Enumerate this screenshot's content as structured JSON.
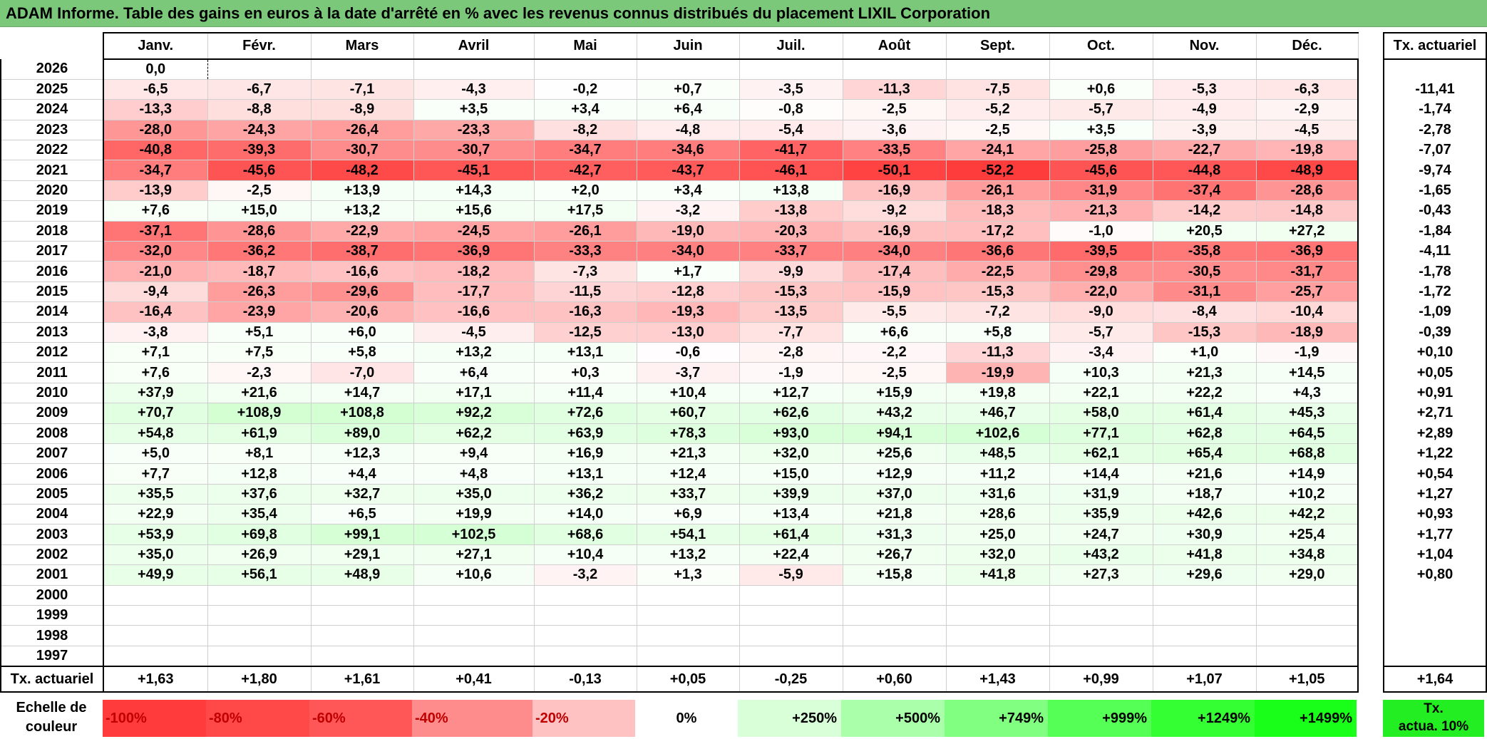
{
  "title": "ADAM Informe. Table des gains en euros à la date d'arrêté en % avec les revenus connus distribués du placement LIXIL Corporation",
  "months": [
    "Janv.",
    "Févr.",
    "Mars",
    "Avril",
    "Mai",
    "Juin",
    "Juil.",
    "Août",
    "Sept.",
    "Oct.",
    "Nov.",
    "Déc."
  ],
  "actuarial_header": "Tx. actuariel",
  "rows": [
    {
      "year": "2026",
      "values": [
        "0,0",
        "",
        "",
        "",
        "",
        "",
        "",
        "",
        "",
        "",
        "",
        ""
      ],
      "actuarial": ""
    },
    {
      "year": "2025",
      "values": [
        "-6,5",
        "-6,7",
        "-7,1",
        "-4,3",
        "-0,2",
        "+0,7",
        "-3,5",
        "-11,3",
        "-7,5",
        "+0,6",
        "-5,3",
        "-6,3"
      ],
      "actuarial": "-11,41"
    },
    {
      "year": "2024",
      "values": [
        "-13,3",
        "-8,8",
        "-8,9",
        "+3,5",
        "+3,4",
        "+6,4",
        "-0,8",
        "-2,5",
        "-5,2",
        "-5,7",
        "-4,9",
        "-2,9"
      ],
      "actuarial": "-1,74"
    },
    {
      "year": "2023",
      "values": [
        "-28,0",
        "-24,3",
        "-26,4",
        "-23,3",
        "-8,2",
        "-4,8",
        "-5,4",
        "-3,6",
        "-2,5",
        "+3,5",
        "-3,9",
        "-4,5"
      ],
      "actuarial": "-2,78"
    },
    {
      "year": "2022",
      "values": [
        "-40,8",
        "-39,3",
        "-30,7",
        "-30,7",
        "-34,7",
        "-34,6",
        "-41,7",
        "-33,5",
        "-24,1",
        "-25,8",
        "-22,7",
        "-19,8"
      ],
      "actuarial": "-7,07"
    },
    {
      "year": "2021",
      "values": [
        "-34,7",
        "-45,6",
        "-48,2",
        "-45,1",
        "-42,7",
        "-43,7",
        "-46,1",
        "-50,1",
        "-52,2",
        "-45,6",
        "-44,8",
        "-48,9"
      ],
      "actuarial": "-9,74"
    },
    {
      "year": "2020",
      "values": [
        "-13,9",
        "-2,5",
        "+13,9",
        "+14,3",
        "+2,0",
        "+3,4",
        "+13,8",
        "-16,9",
        "-26,1",
        "-31,9",
        "-37,4",
        "-28,6"
      ],
      "actuarial": "-1,65"
    },
    {
      "year": "2019",
      "values": [
        "+7,6",
        "+15,0",
        "+13,2",
        "+15,6",
        "+17,5",
        "-3,2",
        "-13,8",
        "-9,2",
        "-18,3",
        "-21,3",
        "-14,2",
        "-14,8"
      ],
      "actuarial": "-0,43"
    },
    {
      "year": "2018",
      "values": [
        "-37,1",
        "-28,6",
        "-22,9",
        "-24,5",
        "-26,1",
        "-19,0",
        "-20,3",
        "-16,9",
        "-17,2",
        "-1,0",
        "+20,5",
        "+27,2"
      ],
      "actuarial": "-1,84"
    },
    {
      "year": "2017",
      "values": [
        "-32,0",
        "-36,2",
        "-38,7",
        "-36,9",
        "-33,3",
        "-34,0",
        "-33,7",
        "-34,0",
        "-36,6",
        "-39,5",
        "-35,8",
        "-36,9"
      ],
      "actuarial": "-4,11"
    },
    {
      "year": "2016",
      "values": [
        "-21,0",
        "-18,7",
        "-16,6",
        "-18,2",
        "-7,3",
        "+1,7",
        "-9,9",
        "-17,4",
        "-22,5",
        "-29,8",
        "-30,5",
        "-31,7"
      ],
      "actuarial": "-1,78"
    },
    {
      "year": "2015",
      "values": [
        "-9,4",
        "-26,3",
        "-29,6",
        "-17,7",
        "-11,5",
        "-12,8",
        "-15,3",
        "-15,9",
        "-15,3",
        "-22,0",
        "-31,1",
        "-25,7"
      ],
      "actuarial": "-1,72"
    },
    {
      "year": "2014",
      "values": [
        "-16,4",
        "-23,9",
        "-20,6",
        "-16,6",
        "-16,3",
        "-19,3",
        "-13,5",
        "-5,5",
        "-7,2",
        "-9,0",
        "-8,4",
        "-10,4"
      ],
      "actuarial": "-1,09"
    },
    {
      "year": "2013",
      "values": [
        "-3,8",
        "+5,1",
        "+6,0",
        "-4,5",
        "-12,5",
        "-13,0",
        "-7,7",
        "+6,6",
        "+5,8",
        "-5,7",
        "-15,3",
        "-18,9"
      ],
      "actuarial": "-0,39"
    },
    {
      "year": "2012",
      "values": [
        "+7,1",
        "+7,5",
        "+5,8",
        "+13,2",
        "+13,1",
        "-0,6",
        "-2,8",
        "-2,2",
        "-11,3",
        "-3,4",
        "+1,0",
        "-1,9"
      ],
      "actuarial": "+0,10"
    },
    {
      "year": "2011",
      "values": [
        "+7,6",
        "-2,3",
        "-7,0",
        "+6,4",
        "+0,3",
        "-3,7",
        "-1,9",
        "-2,5",
        "-19,9",
        "+10,3",
        "+21,3",
        "+14,5"
      ],
      "actuarial": "+0,05"
    },
    {
      "year": "2010",
      "values": [
        "+37,9",
        "+21,6",
        "+14,7",
        "+17,1",
        "+11,4",
        "+10,4",
        "+12,7",
        "+15,9",
        "+19,8",
        "+22,1",
        "+22,2",
        "+4,3"
      ],
      "actuarial": "+0,91"
    },
    {
      "year": "2009",
      "values": [
        "+70,7",
        "+108,9",
        "+108,8",
        "+92,2",
        "+72,6",
        "+60,7",
        "+62,6",
        "+43,2",
        "+46,7",
        "+58,0",
        "+61,4",
        "+45,3"
      ],
      "actuarial": "+2,71"
    },
    {
      "year": "2008",
      "values": [
        "+54,8",
        "+61,9",
        "+89,0",
        "+62,2",
        "+63,9",
        "+78,3",
        "+93,0",
        "+94,1",
        "+102,6",
        "+77,1",
        "+62,8",
        "+64,5"
      ],
      "actuarial": "+2,89"
    },
    {
      "year": "2007",
      "values": [
        "+5,0",
        "+8,1",
        "+12,3",
        "+9,4",
        "+16,9",
        "+21,3",
        "+32,0",
        "+25,6",
        "+48,5",
        "+62,1",
        "+65,4",
        "+68,8"
      ],
      "actuarial": "+1,22"
    },
    {
      "year": "2006",
      "values": [
        "+7,7",
        "+12,8",
        "+4,4",
        "+4,8",
        "+13,1",
        "+12,4",
        "+15,0",
        "+12,9",
        "+11,2",
        "+14,4",
        "+21,6",
        "+14,9"
      ],
      "actuarial": "+0,54"
    },
    {
      "year": "2005",
      "values": [
        "+35,5",
        "+37,6",
        "+32,7",
        "+35,0",
        "+36,2",
        "+33,7",
        "+39,9",
        "+37,0",
        "+31,6",
        "+31,9",
        "+18,7",
        "+10,2"
      ],
      "actuarial": "+1,27"
    },
    {
      "year": "2004",
      "values": [
        "+22,9",
        "+35,4",
        "+6,5",
        "+19,9",
        "+14,0",
        "+6,9",
        "+13,4",
        "+21,8",
        "+28,6",
        "+35,9",
        "+42,6",
        "+42,2"
      ],
      "actuarial": "+0,93"
    },
    {
      "year": "2003",
      "values": [
        "+53,9",
        "+69,8",
        "+99,1",
        "+102,5",
        "+68,6",
        "+54,1",
        "+61,4",
        "+31,3",
        "+25,0",
        "+24,7",
        "+30,9",
        "+25,4"
      ],
      "actuarial": "+1,77"
    },
    {
      "year": "2002",
      "values": [
        "+35,0",
        "+26,9",
        "+29,1",
        "+27,1",
        "+10,4",
        "+13,2",
        "+22,4",
        "+26,7",
        "+32,0",
        "+43,2",
        "+41,8",
        "+34,8"
      ],
      "actuarial": "+1,04"
    },
    {
      "year": "2001",
      "values": [
        "+49,9",
        "+56,1",
        "+48,9",
        "+10,6",
        "-3,2",
        "+1,3",
        "-5,9",
        "+15,8",
        "+41,8",
        "+27,3",
        "+29,6",
        "+29,0"
      ],
      "actuarial": "+0,80"
    },
    {
      "year": "2000",
      "values": [
        "",
        "",
        "",
        "",
        "",
        "",
        "",
        "",
        "",
        "",
        "",
        ""
      ],
      "actuarial": ""
    },
    {
      "year": "1999",
      "values": [
        "",
        "",
        "",
        "",
        "",
        "",
        "",
        "",
        "",
        "",
        "",
        ""
      ],
      "actuarial": ""
    },
    {
      "year": "1998",
      "values": [
        "",
        "",
        "",
        "",
        "",
        "",
        "",
        "",
        "",
        "",
        "",
        ""
      ],
      "actuarial": ""
    },
    {
      "year": "1997",
      "values": [
        "",
        "",
        "",
        "",
        "",
        "",
        "",
        "",
        "",
        "",
        "",
        ""
      ],
      "actuarial": ""
    }
  ],
  "average_row": {
    "label": "Tx. actuariel",
    "values": [
      "+1,63",
      "+1,80",
      "+1,61",
      "+0,41",
      "-0,13",
      "+0,05",
      "-0,25",
      "+0,60",
      "+1,43",
      "+0,99",
      "+1,07",
      "+1,05"
    ],
    "actuarial": "+1,64"
  },
  "color_scale": {
    "label_line1": "Echelle de",
    "label_line2": "couleur",
    "steps": [
      {
        "label": "-100%",
        "color": "#ff3b3b",
        "kind": "neg"
      },
      {
        "label": "-80%",
        "color": "#ff4949",
        "kind": "neg"
      },
      {
        "label": "-60%",
        "color": "#ff5757",
        "kind": "neg"
      },
      {
        "label": "-40%",
        "color": "#ff8c8c",
        "kind": "neg"
      },
      {
        "label": "-20%",
        "color": "#ffc2c2",
        "kind": "neg"
      },
      {
        "label": "0%",
        "color": "#ffffff",
        "kind": "zero"
      },
      {
        "label": "+250%",
        "color": "#d8ffd8",
        "kind": "pos"
      },
      {
        "label": "+500%",
        "color": "#aaffaa",
        "kind": "pos"
      },
      {
        "label": "+749%",
        "color": "#80ff80",
        "kind": "pos"
      },
      {
        "label": "+999%",
        "color": "#55ff55",
        "kind": "pos"
      },
      {
        "label": "+1249%",
        "color": "#33ff33",
        "kind": "pos"
      },
      {
        "label": "+1499%",
        "color": "#1aff1a",
        "kind": "pos"
      }
    ],
    "extra_line1": "Tx.",
    "extra_line2": "actua. 10%"
  }
}
